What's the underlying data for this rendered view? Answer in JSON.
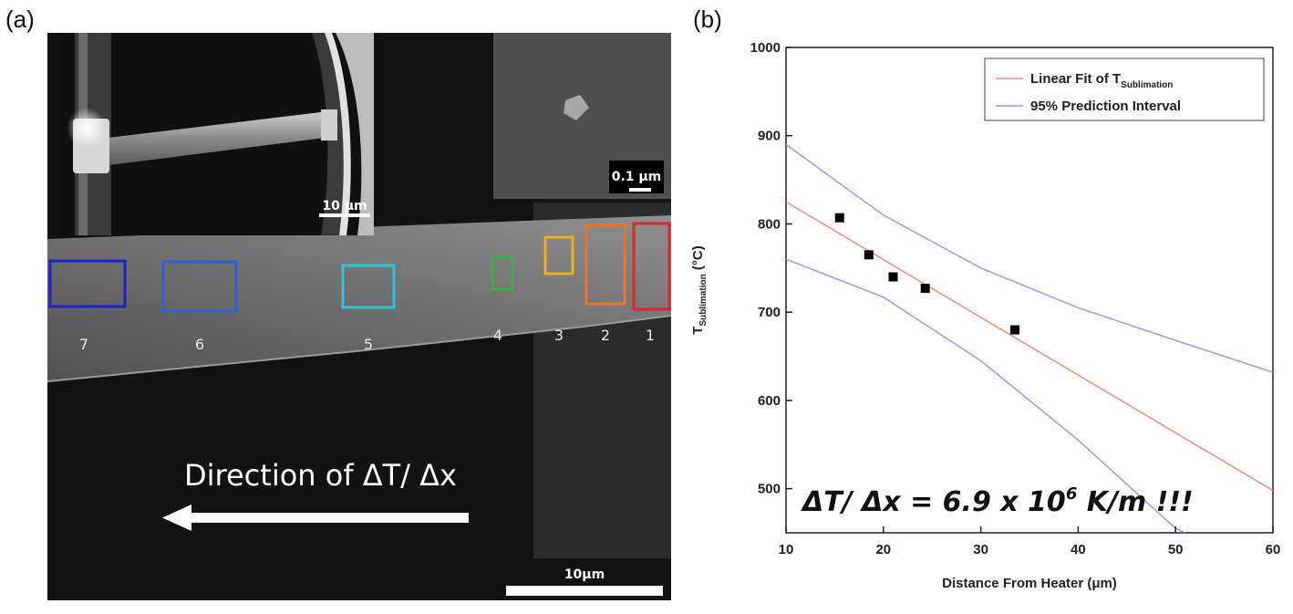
{
  "panel_a": {
    "label": "(a)",
    "inset_left_scale": "10 μm",
    "inset_right_scale": "0.1 μm",
    "main_scale": "10μm",
    "direction_text": "Direction of ΔT/ Δx",
    "regions": [
      {
        "label": "7",
        "color": "#1f1fcf"
      },
      {
        "label": "6",
        "color": "#2a62d8"
      },
      {
        "label": "5",
        "color": "#2fc4d6"
      },
      {
        "label": "4",
        "color": "#3cb043"
      },
      {
        "label": "3",
        "color": "#e8b416"
      },
      {
        "label": "2",
        "color": "#e8752a"
      },
      {
        "label": "1",
        "color": "#e02430"
      }
    ]
  },
  "panel_b": {
    "label": "(b)",
    "annotation": {
      "prefix": "ΔT/ Δx = 6.9 x 10",
      "exp": "6",
      "suffix": " K/m !!!"
    }
  },
  "chart_data": {
    "type": "scatter",
    "xlabel": "Distance From Heater (μm)",
    "ylabel": {
      "base": "T",
      "sub": "Sublimation",
      "unit": " (°C)"
    },
    "xlim": [
      10,
      60
    ],
    "ylim": [
      450,
      1000
    ],
    "xticks": [
      10,
      20,
      30,
      40,
      50,
      60
    ],
    "yticks": [
      500,
      600,
      700,
      800,
      900,
      1000
    ],
    "grid": false,
    "legend_position": "top-right",
    "points": [
      {
        "x": 15.5,
        "y": 807
      },
      {
        "x": 18.5,
        "y": 765
      },
      {
        "x": 21.0,
        "y": 740
      },
      {
        "x": 24.3,
        "y": 727
      },
      {
        "x": 33.5,
        "y": 680
      }
    ],
    "fit": {
      "name": "Linear Fit of T",
      "name_sub": "Sublimation",
      "color": "#f08a8a",
      "x": [
        10,
        60
      ],
      "y": [
        825,
        498
      ]
    },
    "prediction_interval": {
      "name": "95% Prediction Interval",
      "color": "#9a9af0",
      "upper": {
        "x": [
          10,
          20,
          30,
          40,
          50,
          60
        ],
        "y": [
          890,
          810,
          750,
          705,
          668,
          632
        ]
      },
      "lower": {
        "x": [
          10,
          20,
          30,
          40,
          50,
          51
        ],
        "y": [
          760,
          717,
          645,
          555,
          455,
          450
        ]
      }
    }
  }
}
